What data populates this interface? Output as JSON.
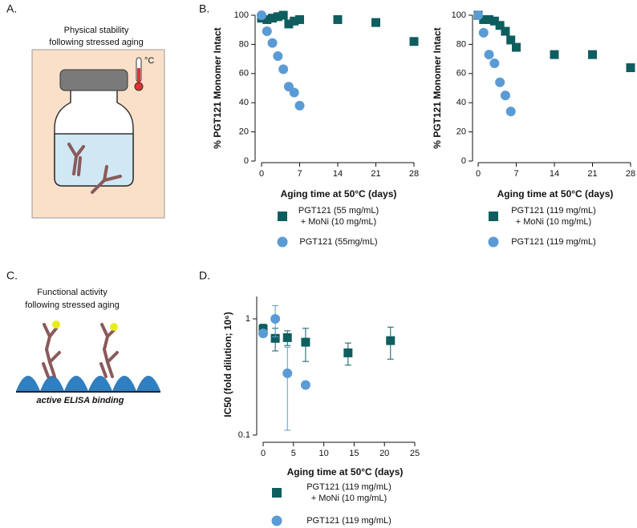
{
  "panel_labels": [
    "A.",
    "B.",
    "C.",
    "D."
  ],
  "illustrations": {
    "a": {
      "title_lines": [
        "Physical stability",
        "following stressed aging"
      ],
      "thermometer_label": "°C"
    },
    "c": {
      "title_lines": [
        "Functional activity",
        "following stressed aging"
      ],
      "caption": "active ELISA binding"
    }
  },
  "chart_data": [
    {
      "type": "scatter",
      "x_label": "Aging time at 50°C (days)",
      "y_label": "% PGT121 Monomer Intact",
      "xlim": [
        0,
        28
      ],
      "xticks": [
        0,
        7,
        14,
        21,
        28
      ],
      "ylim": [
        0,
        100
      ],
      "yticks": [
        0,
        20,
        40,
        60,
        80,
        100
      ],
      "log_y": false,
      "series": [
        {
          "name": "PGT121 (55 mg/mL)\n+ MoNi (10 mg/mL)",
          "marker": "square",
          "color": "#0f5e5f",
          "x": [
            0,
            1,
            2,
            3,
            4,
            5,
            6,
            7,
            14,
            21,
            28
          ],
          "values": [
            98,
            97,
            98,
            99,
            100,
            94,
            96,
            97,
            97,
            95,
            82
          ]
        },
        {
          "name": "PGT121 (55mg/mL)",
          "marker": "circle",
          "color": "#5b9bd5",
          "x": [
            0,
            1,
            2,
            3,
            4,
            5,
            6,
            7
          ],
          "values": [
            100,
            89,
            81,
            72,
            63,
            51,
            47,
            38
          ]
        }
      ]
    },
    {
      "type": "scatter",
      "x_label": "Aging time at 50°C (days)",
      "y_label": "% PGT121 Monomer Intact",
      "xlim": [
        0,
        28
      ],
      "xticks": [
        0,
        7,
        14,
        21,
        28
      ],
      "ylim": [
        0,
        100
      ],
      "yticks": [
        0,
        20,
        40,
        60,
        80,
        100
      ],
      "log_y": false,
      "series": [
        {
          "name": "PGT121 (119 mg/mL)\n+ MoNi (10 mg/mL)",
          "marker": "square",
          "color": "#0f5e5f",
          "x": [
            0,
            1,
            2,
            3,
            4,
            5,
            6,
            7,
            14,
            21,
            28
          ],
          "values": [
            100,
            97,
            97,
            96,
            93,
            89,
            83,
            78,
            73,
            73,
            64
          ]
        },
        {
          "name": "PGT121 (119 mg/mL)",
          "marker": "circle",
          "color": "#5b9bd5",
          "x": [
            0,
            1,
            2,
            3,
            4,
            5,
            6
          ],
          "values": [
            100,
            88,
            73,
            67,
            54,
            45,
            34
          ]
        }
      ]
    },
    {
      "type": "scatter",
      "x_label": "Aging time at 50°C (days)",
      "y_label": "IC50 (fold dilution; 10⁶)",
      "xlim": [
        0,
        25
      ],
      "xticks": [
        0,
        5,
        10,
        15,
        20,
        25
      ],
      "ylim": [
        0.1,
        1.56
      ],
      "yticks": [
        0.1,
        1
      ],
      "log_y": true,
      "series": [
        {
          "name": "PGT121 (119 mg/mL)\n+ MoNi (10 mg/mL)",
          "marker": "square",
          "color": "#0f5e5f",
          "x": [
            0,
            2,
            4,
            7,
            14,
            21
          ],
          "values": [
            0.82,
            0.68,
            0.69,
            0.63,
            0.51,
            0.65
          ],
          "errors": [
            0.08,
            0.15,
            0.1,
            0.2,
            0.11,
            0.2
          ]
        },
        {
          "name": "PGT121 (119 mg/mL)",
          "marker": "circle",
          "color": "#5b9bd5",
          "x": [
            0,
            2,
            4,
            7
          ],
          "values": [
            0.75,
            1.0,
            0.34,
            0.27
          ],
          "errors": [
            0.05,
            0.3,
            0.23,
            0
          ]
        }
      ]
    }
  ]
}
